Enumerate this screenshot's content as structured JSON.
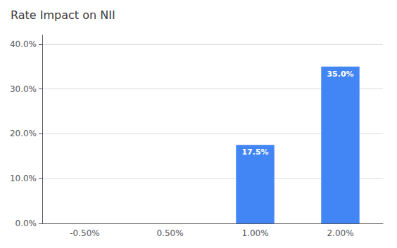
{
  "chart_data": {
    "type": "bar",
    "title": "Rate Impact on NII",
    "categories": [
      "-0.50%",
      "0.50%",
      "1.00%",
      "2.00%"
    ],
    "values": [
      0.0,
      0.0,
      0.175,
      0.35
    ],
    "data_labels": true,
    "value_labels": [
      null,
      null,
      "17.5%",
      "35.0%"
    ],
    "color": "#4285F4",
    "ylim": [
      0,
      0.42
    ],
    "yticks": [
      {
        "value": 0.0,
        "label": "0.0%"
      },
      {
        "value": 0.1,
        "label": "10.0%"
      },
      {
        "value": 0.2,
        "label": "20.0%"
      },
      {
        "value": 0.3,
        "label": "30.0%"
      },
      {
        "value": 0.4,
        "label": "40.0%"
      }
    ],
    "grid": true
  }
}
